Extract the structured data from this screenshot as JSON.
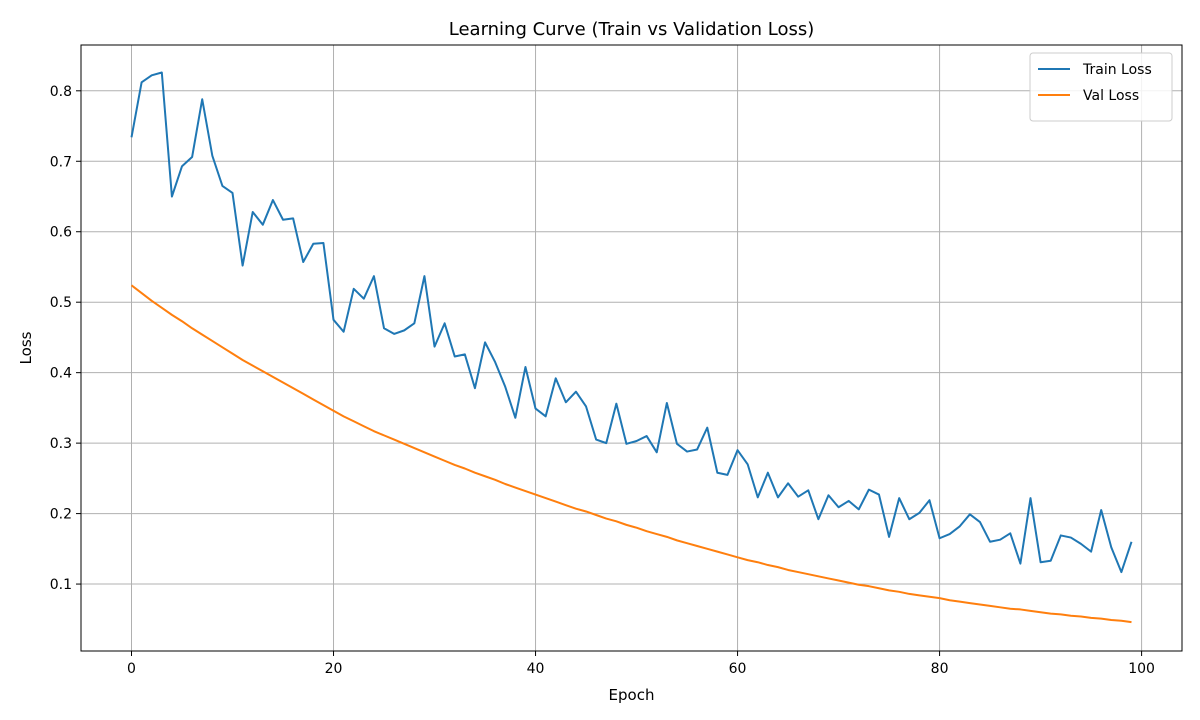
{
  "chart_data": {
    "type": "line",
    "title": "Learning Curve (Train vs Validation Loss)",
    "xlabel": "Epoch",
    "ylabel": "Loss",
    "xlim": [
      -5,
      104
    ],
    "ylim": [
      0.005,
      0.865
    ],
    "xticks": [
      0,
      20,
      40,
      60,
      80,
      100
    ],
    "yticks": [
      0.1,
      0.2,
      0.3,
      0.4,
      0.5,
      0.6,
      0.7,
      0.8
    ],
    "grid": true,
    "legend_position": "top-right",
    "series": [
      {
        "name": "Train Loss",
        "color": "#1f77b4",
        "x": [
          0,
          1,
          2,
          3,
          4,
          5,
          6,
          7,
          8,
          9,
          10,
          11,
          12,
          13,
          14,
          15,
          16,
          17,
          18,
          19,
          20,
          21,
          22,
          23,
          24,
          25,
          26,
          27,
          28,
          29,
          30,
          31,
          32,
          33,
          34,
          35,
          36,
          37,
          38,
          39,
          40,
          41,
          42,
          43,
          44,
          45,
          46,
          47,
          48,
          49,
          50,
          51,
          52,
          53,
          54,
          55,
          56,
          57,
          58,
          59,
          60,
          61,
          62,
          63,
          64,
          65,
          66,
          67,
          68,
          69,
          70,
          71,
          72,
          73,
          74,
          75,
          76,
          77,
          78,
          79,
          80,
          81,
          82,
          83,
          84,
          85,
          86,
          87,
          88,
          89,
          90,
          91,
          92,
          93,
          94,
          95,
          96,
          97,
          98,
          99
        ],
        "values": [
          0.734,
          0.812,
          0.822,
          0.826,
          0.65,
          0.693,
          0.706,
          0.788,
          0.708,
          0.665,
          0.655,
          0.552,
          0.628,
          0.61,
          0.645,
          0.617,
          0.619,
          0.557,
          0.583,
          0.584,
          0.475,
          0.458,
          0.519,
          0.505,
          0.537,
          0.463,
          0.455,
          0.46,
          0.47,
          0.537,
          0.437,
          0.47,
          0.423,
          0.426,
          0.378,
          0.443,
          0.415,
          0.38,
          0.336,
          0.408,
          0.349,
          0.338,
          0.392,
          0.358,
          0.373,
          0.352,
          0.305,
          0.3,
          0.356,
          0.299,
          0.303,
          0.31,
          0.287,
          0.357,
          0.299,
          0.288,
          0.291,
          0.322,
          0.258,
          0.255,
          0.29,
          0.27,
          0.223,
          0.258,
          0.223,
          0.243,
          0.224,
          0.233,
          0.192,
          0.226,
          0.209,
          0.218,
          0.206,
          0.234,
          0.227,
          0.167,
          0.222,
          0.192,
          0.201,
          0.219,
          0.165,
          0.171,
          0.182,
          0.199,
          0.188,
          0.16,
          0.163,
          0.172,
          0.129,
          0.222,
          0.131,
          0.133,
          0.169,
          0.166,
          0.157,
          0.146,
          0.205,
          0.152,
          0.117,
          0.16
        ]
      },
      {
        "name": "Val Loss",
        "color": "#ff7f0e",
        "x": [
          0,
          1,
          2,
          3,
          4,
          5,
          6,
          7,
          8,
          9,
          10,
          11,
          12,
          13,
          14,
          15,
          16,
          17,
          18,
          19,
          20,
          21,
          22,
          23,
          24,
          25,
          26,
          27,
          28,
          29,
          30,
          31,
          32,
          33,
          34,
          35,
          36,
          37,
          38,
          39,
          40,
          41,
          42,
          43,
          44,
          45,
          46,
          47,
          48,
          49,
          50,
          51,
          52,
          53,
          54,
          55,
          56,
          57,
          58,
          59,
          60,
          61,
          62,
          63,
          64,
          65,
          66,
          67,
          68,
          69,
          70,
          71,
          72,
          73,
          74,
          75,
          76,
          77,
          78,
          79,
          80,
          81,
          82,
          83,
          84,
          85,
          86,
          87,
          88,
          89,
          90,
          91,
          92,
          93,
          94,
          95,
          96,
          97,
          98,
          99
        ],
        "values": [
          0.524,
          0.513,
          0.502,
          0.492,
          0.482,
          0.473,
          0.463,
          0.454,
          0.445,
          0.436,
          0.427,
          0.418,
          0.41,
          0.402,
          0.394,
          0.386,
          0.378,
          0.37,
          0.362,
          0.354,
          0.346,
          0.338,
          0.331,
          0.324,
          0.317,
          0.311,
          0.305,
          0.299,
          0.293,
          0.287,
          0.281,
          0.275,
          0.269,
          0.264,
          0.258,
          0.253,
          0.248,
          0.242,
          0.237,
          0.232,
          0.227,
          0.222,
          0.217,
          0.212,
          0.207,
          0.203,
          0.198,
          0.193,
          0.189,
          0.184,
          0.18,
          0.175,
          0.171,
          0.167,
          0.162,
          0.158,
          0.154,
          0.15,
          0.146,
          0.142,
          0.138,
          0.134,
          0.131,
          0.127,
          0.124,
          0.12,
          0.117,
          0.114,
          0.111,
          0.108,
          0.105,
          0.102,
          0.099,
          0.097,
          0.094,
          0.091,
          0.089,
          0.086,
          0.084,
          0.082,
          0.08,
          0.077,
          0.075,
          0.073,
          0.071,
          0.069,
          0.067,
          0.065,
          0.064,
          0.062,
          0.06,
          0.058,
          0.057,
          0.055,
          0.054,
          0.052,
          0.051,
          0.049,
          0.048,
          0.046
        ]
      }
    ]
  }
}
